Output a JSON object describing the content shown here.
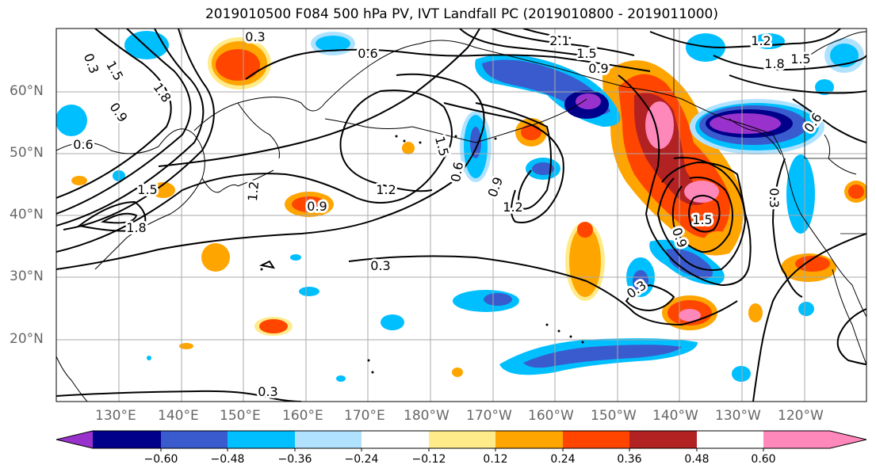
{
  "title": "2019010500 F084 500 hPa PV, IVT Landfall PC (2019010800 - 2019011000)",
  "lat_labels": [
    "60°N",
    "50°N",
    "40°N",
    "30°N",
    "20°N"
  ],
  "lon_labels": [
    "130°E",
    "140°E",
    "150°E",
    "160°E",
    "170°E",
    "180°W",
    "170°W",
    "160°W",
    "150°W",
    "140°W",
    "130°W",
    "120°W"
  ],
  "contour_labels": [
    "0.3",
    "0.6",
    "0.9",
    "1.2",
    "1.5",
    "1.8",
    "2.1"
  ],
  "colorbar": {
    "ticks": [
      "−0.60",
      "−0.48",
      "−0.36",
      "−0.24",
      "−0.12",
      "0.12",
      "0.24",
      "0.36",
      "0.48",
      "0.60"
    ],
    "colors": [
      "#9932CC",
      "#00008B",
      "#3A5BCD",
      "#00BFFF",
      "#B0E2FF",
      "#FFFFFF",
      "#FFEB8A",
      "#FFA500",
      "#FF4500",
      "#B22222",
      "#FF88BB"
    ]
  }
}
